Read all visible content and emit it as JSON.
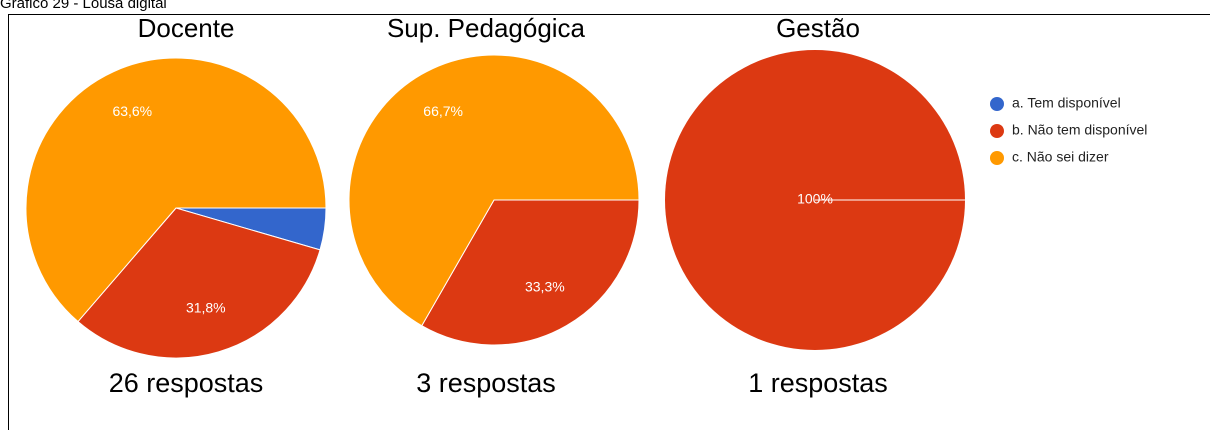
{
  "title": "Gráfico 29 - Lousa digital",
  "chart_data": [
    {
      "type": "pie",
      "title": "Docente",
      "subtitle": "26 respostas",
      "categories": [
        "a. Tem disponível",
        "b. Não tem disponível",
        "c. Não sei dizer"
      ],
      "values": [
        4.5,
        31.8,
        63.6
      ],
      "value_labels": [
        null,
        "31,8%",
        "63,6%"
      ],
      "colors": [
        "#3366cc",
        "#dc3912",
        "#ff9900"
      ],
      "legend": "right"
    },
    {
      "type": "pie",
      "title": "Sup. Pedagógica",
      "subtitle": "3 respostas",
      "categories": [
        "a. Tem disponível",
        "b. Não tem disponível",
        "c. Não sei dizer"
      ],
      "values": [
        0,
        33.3,
        66.7
      ],
      "value_labels": [
        null,
        "33,3%",
        "66,7%"
      ],
      "colors": [
        "#3366cc",
        "#dc3912",
        "#ff9900"
      ]
    },
    {
      "type": "pie",
      "title": "Gestão",
      "subtitle": "1 respostas",
      "categories": [
        "a. Tem disponível",
        "b. Não tem disponível",
        "c. Não sei dizer"
      ],
      "values": [
        0,
        100,
        0
      ],
      "value_labels": [
        null,
        "100%",
        null
      ],
      "colors": [
        "#3366cc",
        "#dc3912",
        "#ff9900"
      ]
    }
  ]
}
